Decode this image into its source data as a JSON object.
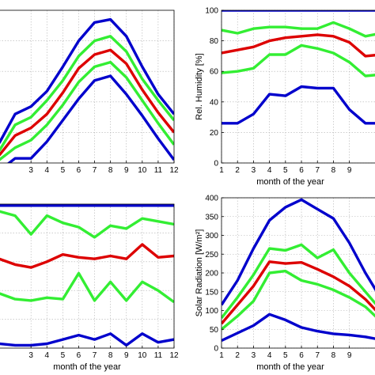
{
  "colors": {
    "blue": "#0000cc",
    "green": "#33ee33",
    "red": "#dd0000",
    "axis": "#000000",
    "grid": "#b0b0b0"
  },
  "chart_data": [
    {
      "id": "top-left",
      "type": "line",
      "title": "",
      "xlabel": "",
      "ylabel": "",
      "x": [
        1,
        2,
        3,
        4,
        5,
        6,
        7,
        8,
        9,
        10,
        11,
        12
      ],
      "xlim": [
        1,
        12
      ],
      "ylim": [
        0,
        10
      ],
      "xticklabels": [
        "3",
        "4",
        "5",
        "6",
        "7",
        "8",
        "9",
        "10",
        "11",
        "12"
      ],
      "xtickvalues": [
        3,
        4,
        5,
        6,
        7,
        8,
        9,
        10,
        11,
        12
      ],
      "yticklabels": [],
      "grid": true,
      "series": [
        {
          "color": "blue",
          "values": [
            1.3,
            3.2,
            3.7,
            4.7,
            6.3,
            8.0,
            9.2,
            9.4,
            8.3,
            6.3,
            4.5,
            3.2
          ]
        },
        {
          "color": "green",
          "values": [
            0.8,
            2.5,
            3.0,
            4.1,
            5.4,
            7.0,
            8.0,
            8.3,
            7.3,
            5.5,
            4.1,
            2.8
          ]
        },
        {
          "color": "red",
          "values": [
            0.5,
            1.8,
            2.3,
            3.2,
            4.6,
            6.2,
            7.1,
            7.4,
            6.5,
            4.8,
            3.3,
            2.0
          ]
        },
        {
          "color": "green",
          "values": [
            0.2,
            1.0,
            1.5,
            2.5,
            3.8,
            5.3,
            6.3,
            6.6,
            5.6,
            4.1,
            2.6,
            1.2
          ]
        },
        {
          "color": "blue",
          "values": [
            -0.5,
            0.3,
            0.3,
            1.4,
            2.8,
            4.2,
            5.4,
            5.7,
            4.5,
            3.1,
            1.6,
            0.2
          ]
        }
      ]
    },
    {
      "id": "top-right",
      "type": "line",
      "title": "",
      "xlabel": "month of the year",
      "ylabel": "Rel. Humidity [%]",
      "x": [
        1,
        2,
        3,
        4,
        5,
        6,
        7,
        8,
        9,
        10,
        11,
        12
      ],
      "xlim": [
        1,
        10.7
      ],
      "ylim": [
        0,
        100
      ],
      "xticklabels": [
        "1",
        "2",
        "3",
        "4",
        "5",
        "6",
        "7",
        "8",
        "9"
      ],
      "xtickvalues": [
        1,
        2,
        3,
        4,
        5,
        6,
        7,
        8,
        9
      ],
      "yticklabels": [
        "0",
        "20",
        "40",
        "60",
        "80",
        "100"
      ],
      "ytickvalues": [
        0,
        20,
        40,
        60,
        80,
        100
      ],
      "grid": true,
      "series": [
        {
          "color": "blue",
          "values": [
            100,
            100,
            100,
            100,
            100,
            100,
            100,
            100,
            100,
            100,
            100,
            100
          ]
        },
        {
          "color": "green",
          "values": [
            87,
            85,
            88,
            89,
            89,
            88,
            88,
            92,
            88,
            83,
            85,
            87
          ]
        },
        {
          "color": "red",
          "values": [
            72,
            74,
            76,
            80,
            82,
            83,
            84,
            83,
            79,
            70,
            71,
            72
          ]
        },
        {
          "color": "green",
          "values": [
            59,
            60,
            62,
            71,
            71,
            77,
            75,
            72,
            66,
            57,
            58,
            59
          ]
        },
        {
          "color": "blue",
          "values": [
            26,
            26,
            32,
            45,
            44,
            50,
            49,
            49,
            35,
            26,
            26,
            26
          ]
        }
      ]
    },
    {
      "id": "bottom-left",
      "type": "line",
      "title": "",
      "xlabel": "month of the year",
      "ylabel": "",
      "x": [
        1,
        2,
        3,
        4,
        5,
        6,
        7,
        8,
        9,
        10,
        11,
        12
      ],
      "xlim": [
        1,
        12
      ],
      "ylim": [
        0,
        10
      ],
      "xticklabels": [
        "3",
        "4",
        "5",
        "6",
        "7",
        "8",
        "9",
        "10",
        "11",
        "12"
      ],
      "xtickvalues": [
        3,
        4,
        5,
        6,
        7,
        8,
        9,
        10,
        11,
        12
      ],
      "yticklabels": [],
      "grid": true,
      "series": [
        {
          "color": "blue",
          "values": [
            9.9,
            9.9,
            9.9,
            9.9,
            9.9,
            9.9,
            9.9,
            9.9,
            9.9,
            9.9,
            9.9,
            9.9
          ]
        },
        {
          "color": "green",
          "values": [
            9.5,
            9.2,
            7.9,
            9.2,
            8.7,
            8.4,
            7.7,
            8.5,
            8.3,
            9.0,
            8.8,
            8.6
          ]
        },
        {
          "color": "red",
          "values": [
            6.2,
            5.8,
            5.6,
            6.0,
            6.5,
            6.3,
            6.2,
            6.4,
            6.2,
            7.2,
            6.3,
            6.4
          ]
        },
        {
          "color": "green",
          "values": [
            3.8,
            3.4,
            3.3,
            3.5,
            3.4,
            5.2,
            3.3,
            4.6,
            3.3,
            4.6,
            4.0,
            3.2
          ]
        },
        {
          "color": "blue",
          "values": [
            0.3,
            0.2,
            0.2,
            0.3,
            0.6,
            0.9,
            0.6,
            1.0,
            0.2,
            1.0,
            0.4,
            0.6
          ]
        }
      ]
    },
    {
      "id": "bottom-right",
      "type": "line",
      "title": "",
      "xlabel": "month of the year",
      "ylabel": "Solar Radiation [W/m²]",
      "x": [
        1,
        2,
        3,
        4,
        5,
        6,
        7,
        8,
        9,
        10,
        11,
        12
      ],
      "xlim": [
        1,
        10.7
      ],
      "ylim": [
        0,
        400
      ],
      "xticklabels": [
        "1",
        "2",
        "3",
        "4",
        "5",
        "6",
        "7",
        "8",
        "9"
      ],
      "xtickvalues": [
        1,
        2,
        3,
        4,
        5,
        6,
        7,
        8,
        9
      ],
      "yticklabels": [
        "0",
        "50",
        "100",
        "150",
        "200",
        "250",
        "300",
        "350",
        "400"
      ],
      "ytickvalues": [
        0,
        50,
        100,
        150,
        200,
        250,
        300,
        350,
        400
      ],
      "grid": true,
      "series": [
        {
          "color": "blue",
          "values": [
            115,
            180,
            265,
            340,
            375,
            395,
            370,
            345,
            280,
            200,
            130,
            110
          ]
        },
        {
          "color": "green",
          "values": [
            80,
            135,
            195,
            265,
            260,
            275,
            240,
            262,
            200,
            150,
            100,
            80
          ]
        },
        {
          "color": "red",
          "values": [
            65,
            115,
            165,
            230,
            225,
            228,
            210,
            190,
            165,
            130,
            85,
            65
          ]
        },
        {
          "color": "green",
          "values": [
            50,
            85,
            125,
            200,
            205,
            180,
            170,
            155,
            135,
            110,
            70,
            50
          ]
        },
        {
          "color": "blue",
          "values": [
            20,
            40,
            60,
            90,
            75,
            55,
            45,
            38,
            35,
            30,
            22,
            20
          ]
        }
      ]
    }
  ]
}
